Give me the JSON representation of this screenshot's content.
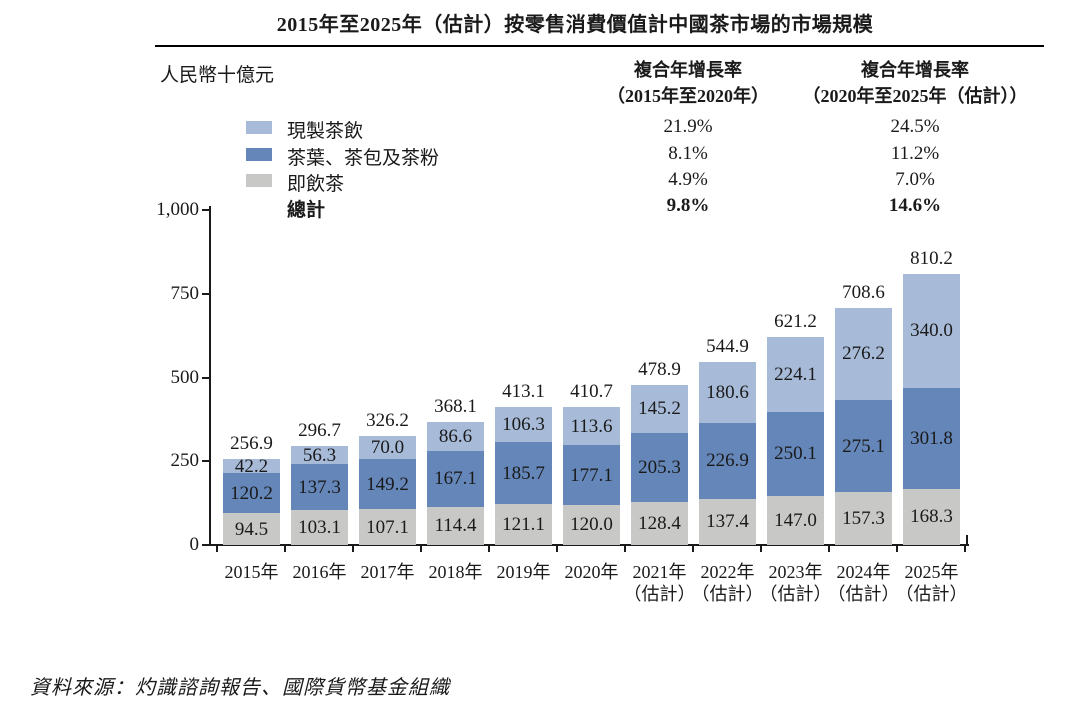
{
  "title": "2015年至2025年（估計）按零售消費價值計中國茶市場的市場規模",
  "unit_label": "人民幣十億元",
  "source_note": "資料來源：灼識諮詢報告、國際貨幣基金組織",
  "cagr_columns": [
    {
      "title": "複合年增長率",
      "period": "（2015年至2020年）"
    },
    {
      "title": "複合年增長率",
      "period": "（2020年至2025年（估計））"
    }
  ],
  "chart_data": {
    "type": "bar",
    "stacked": true,
    "title": "2015年至2025年（估計）按零售消費價值計中國茶市場的市場規模",
    "ylabel": "人民幣十億元",
    "ylim": [
      0,
      1000
    ],
    "grid": false,
    "legend_position": "top-left",
    "y_ticks": [
      {
        "label": "0",
        "value": 0
      },
      {
        "label": "250",
        "value": 250
      },
      {
        "label": "500",
        "value": 500
      },
      {
        "label": "750",
        "value": 750
      },
      {
        "label": "1,000",
        "value": 1000
      }
    ],
    "categories": [
      {
        "label": "2015年",
        "sublabel": ""
      },
      {
        "label": "2016年",
        "sublabel": ""
      },
      {
        "label": "2017年",
        "sublabel": ""
      },
      {
        "label": "2018年",
        "sublabel": ""
      },
      {
        "label": "2019年",
        "sublabel": ""
      },
      {
        "label": "2020年",
        "sublabel": ""
      },
      {
        "label": "2021年",
        "sublabel": "（估計）"
      },
      {
        "label": "2022年",
        "sublabel": "（估計）"
      },
      {
        "label": "2023年",
        "sublabel": "（估計）"
      },
      {
        "label": "2024年",
        "sublabel": "（估計）"
      },
      {
        "label": "2025年",
        "sublabel": "（估計）"
      }
    ],
    "series": [
      {
        "name": "現製茶飲",
        "color": "#a7bbd8",
        "values": [
          42.2,
          56.3,
          70.0,
          86.6,
          106.3,
          113.6,
          145.2,
          180.6,
          224.1,
          276.2,
          340.0
        ],
        "cagr_2015_2020": "21.9%",
        "cagr_2020_2025": "24.5%"
      },
      {
        "name": "茶葉、茶包及茶粉",
        "color": "#6486b9",
        "values": [
          120.2,
          137.3,
          149.2,
          167.1,
          185.7,
          177.1,
          205.3,
          226.9,
          250.1,
          275.1,
          301.8
        ],
        "cagr_2015_2020": "8.1%",
        "cagr_2020_2025": "11.2%"
      },
      {
        "name": "即飲茶",
        "color": "#c8c8c6",
        "values": [
          94.5,
          103.1,
          107.1,
          114.4,
          121.1,
          120.0,
          128.4,
          137.4,
          147.0,
          157.3,
          168.3
        ],
        "cagr_2015_2020": "4.9%",
        "cagr_2020_2025": "7.0%"
      }
    ],
    "total": {
      "name": "總計",
      "values": [
        256.9,
        296.7,
        326.2,
        368.1,
        413.1,
        410.7,
        478.9,
        544.9,
        621.2,
        708.6,
        810.2
      ],
      "cagr_2015_2020": "9.8%",
      "cagr_2020_2025": "14.6%"
    }
  }
}
